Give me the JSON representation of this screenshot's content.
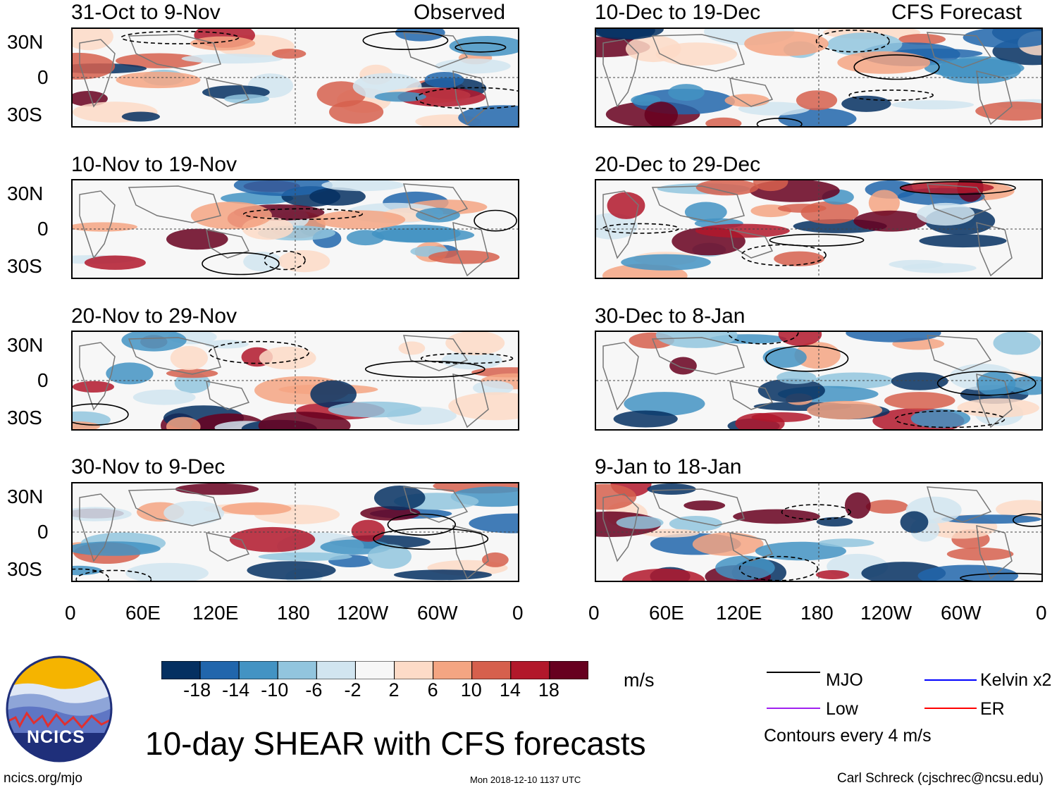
{
  "header": {
    "left_label": "Observed",
    "right_label": "CFS Forecast"
  },
  "panels_left": [
    {
      "title": "31-Oct to 9-Nov"
    },
    {
      "title": "10-Nov to 19-Nov"
    },
    {
      "title": "20-Nov to 29-Nov"
    },
    {
      "title": "30-Nov to 9-Dec"
    }
  ],
  "panels_right": [
    {
      "title": "10-Dec to 19-Dec"
    },
    {
      "title": "20-Dec to 29-Dec"
    },
    {
      "title": "30-Dec to 8-Jan"
    },
    {
      "title": "9-Jan to 18-Jan"
    }
  ],
  "chart_data": {
    "type": "heatmap",
    "title": "10-day SHEAR with CFS forecasts",
    "units": "m/s",
    "y_ticks": [
      "30N",
      "0",
      "30S"
    ],
    "x_ticks": [
      "0",
      "60E",
      "120E",
      "180",
      "120W",
      "60W",
      "0"
    ],
    "colorbar": {
      "tick_labels": [
        "-18",
        "-14",
        "-10",
        "-6",
        "-2",
        "2",
        "6",
        "10",
        "14",
        "18"
      ],
      "colors": [
        "#053061",
        "#2166ac",
        "#4393c3",
        "#92c5de",
        "#d1e5f0",
        "#f7f7f7",
        "#fddbc7",
        "#f4a582",
        "#d6604d",
        "#b2182b",
        "#67001f"
      ]
    },
    "contour_legend": [
      {
        "label": "MJO",
        "color": "#000000"
      },
      {
        "label": "Kelvin x2",
        "color": "#0000ff"
      },
      {
        "label": "Low",
        "color": "#a020f0"
      },
      {
        "label": "ER",
        "color": "#ff0000"
      }
    ],
    "contour_note": "Contours every 4 m/s"
  },
  "footer": {
    "site": "ncics.org/mjo",
    "timestamp": "Mon 2018-12-10 1137 UTC",
    "author": "Carl Schreck (cjschrec@ncsu.edu)",
    "logo_text": "NCICS"
  }
}
